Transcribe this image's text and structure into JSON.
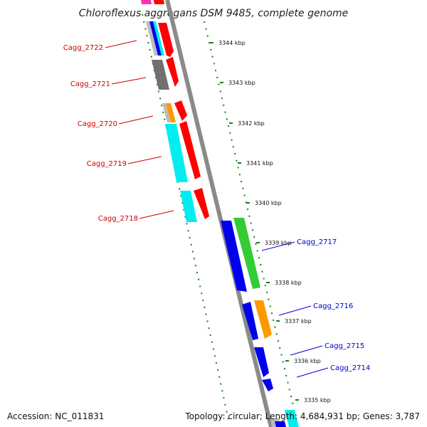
{
  "title": "Chloroflexus aggregans DSM 9485, complete genome",
  "footer": {
    "accession": "Accession: NC_011831",
    "summary": "Topology: circular; Length: 4,684,931 bp; Genes: 3,787"
  },
  "colors": {
    "backbone": "#8a8a8a",
    "tick": "#1a7a1a",
    "reverse_label": "#cc0000",
    "forward_label": "#0000cc",
    "red": "#ff0000",
    "blue": "#0000ee",
    "cyan": "#00eeee",
    "green": "#33cc33",
    "orange": "#ff9900",
    "gray": "#707070",
    "lightgray": "#bbbbbb",
    "magenta": "#ff33aa"
  },
  "ticks": [
    {
      "label": "3344 kbp"
    },
    {
      "label": "3343 kbp"
    },
    {
      "label": "3342 kbp"
    },
    {
      "label": "3341 kbp"
    },
    {
      "label": "3340 kbp"
    },
    {
      "label": "3339 kbp"
    },
    {
      "label": "3338 kbp"
    },
    {
      "label": "3337 kbp"
    },
    {
      "label": "3336 kbp"
    },
    {
      "label": "3335 kbp"
    }
  ],
  "genes_reverse": [
    {
      "label": "Cagg_2722"
    },
    {
      "label": "Cagg_2721"
    },
    {
      "label": "Cagg_2720"
    },
    {
      "label": "Cagg_2719"
    },
    {
      "label": "Cagg_2718"
    }
  ],
  "genes_forward": [
    {
      "label": "Cagg_2717"
    },
    {
      "label": "Cagg_2716"
    },
    {
      "label": "Cagg_2715"
    },
    {
      "label": "Cagg_2714"
    }
  ]
}
